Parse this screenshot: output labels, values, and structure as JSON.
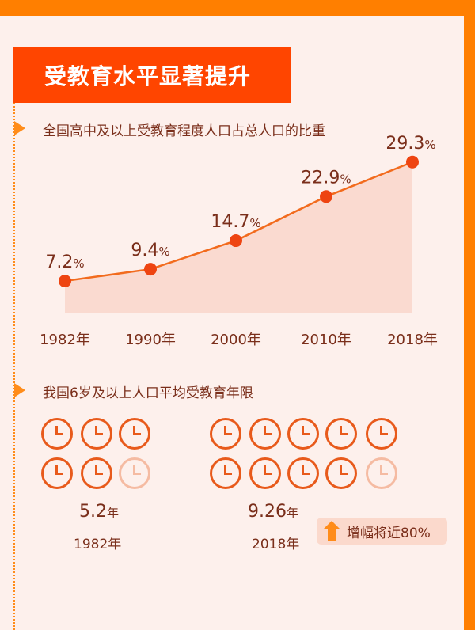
{
  "title": "受教育水平显著提升",
  "section1": {
    "subtitle": "全国高中及以上受教育程度人口占总人口的比重"
  },
  "chart_data": {
    "type": "area",
    "title": "全国高中及以上受教育程度人口占总人口的比重",
    "categories": [
      "1982年",
      "1990年",
      "2000年",
      "2010年",
      "2018年"
    ],
    "values": [
      7.2,
      9.4,
      14.7,
      22.9,
      29.3
    ],
    "labels": [
      "7.2",
      "9.4",
      "14.7",
      "22.9",
      "29.3"
    ],
    "unit": "%",
    "ylim": [
      0,
      32
    ],
    "grid": false
  },
  "section2": {
    "subtitle": "我国6岁及以上人口平均受教育年限",
    "left": {
      "value": "5.2",
      "unit": "年",
      "year": "1982年",
      "years": 5.2
    },
    "right": {
      "value": "9.26",
      "unit": "年",
      "year": "2018年",
      "years": 9.26
    },
    "badge": "增幅将近80%"
  },
  "colors": {
    "accent": "#ff4500",
    "orange": "#ff7f00",
    "line": "#f26b1d",
    "dot": "#ee4411",
    "area": "#f9d6cb"
  }
}
